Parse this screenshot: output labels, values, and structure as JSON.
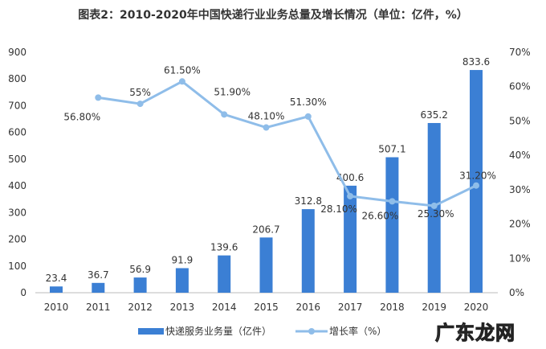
{
  "title": "图表2：2010-2020年中国快递行业业务总量及增长情况（单位：亿件，%）",
  "watermark_logo": "广东龙网",
  "chart_data": {
    "type": "bar+line",
    "categories": [
      "2010",
      "2011",
      "2012",
      "2013",
      "2014",
      "2015",
      "2016",
      "2017",
      "2018",
      "2019",
      "2020"
    ],
    "series": [
      {
        "name": "快递服务业务量（亿件）",
        "type": "bar",
        "axis": "left",
        "color": "#3b7fd4",
        "values": [
          23.4,
          36.7,
          56.9,
          91.9,
          139.6,
          206.7,
          312.8,
          400.6,
          507.1,
          635.2,
          833.6
        ],
        "labels": [
          "23.4",
          "36.7",
          "56.9",
          "91.9",
          "139.6",
          "206.7",
          "312.8",
          "400.6",
          "507.1",
          "635.2",
          "833.6"
        ]
      },
      {
        "name": "增长率（%）",
        "type": "line",
        "axis": "right",
        "color": "#8fbde9",
        "values": [
          null,
          56.8,
          55,
          61.5,
          51.9,
          48.1,
          51.3,
          28.1,
          26.6,
          25.3,
          31.2
        ],
        "labels": [
          "",
          "56.80%",
          "55%",
          "61.50%",
          "51.90%",
          "48.10%",
          "51.30%",
          "28.10%",
          "26.60%",
          "25.30%",
          "31.20%"
        ]
      }
    ],
    "ylim_left": [
      0,
      900
    ],
    "yticks_left": [
      "0",
      "100",
      "200",
      "300",
      "400",
      "500",
      "600",
      "700",
      "800",
      "900"
    ],
    "ylim_right": [
      0,
      70
    ],
    "yticks_right": [
      "0%",
      "10%",
      "20%",
      "30%",
      "40%",
      "50%",
      "60%",
      "70%"
    ],
    "grid": false,
    "legend": "bottom"
  }
}
